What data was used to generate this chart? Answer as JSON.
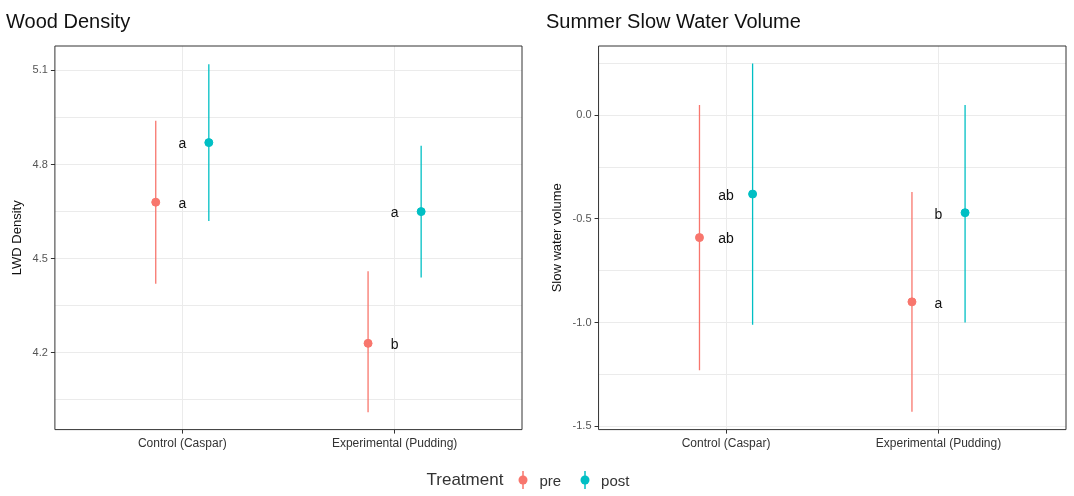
{
  "chart_data": [
    {
      "type": "scatter",
      "title": "Wood Density",
      "ylabel": "LWD Density",
      "categories": [
        "Control (Caspar)",
        "Experimental (Pudding)"
      ],
      "series": [
        {
          "name": "pre",
          "color": "#f8766d",
          "values": [
            4.68,
            4.23
          ],
          "errors": [
            [
              4.42,
              4.94
            ],
            [
              4.01,
              4.46
            ]
          ]
        },
        {
          "name": "post",
          "color": "#00bfc4",
          "values": [
            4.87,
            4.65
          ],
          "errors": [
            [
              4.62,
              5.12
            ],
            [
              4.44,
              4.86
            ]
          ]
        }
      ],
      "ylim": [
        3.955,
        5.178
      ],
      "yticks": [
        {
          "value": 4.05,
          "label": null
        },
        4.2,
        {
          "value": 4.35,
          "label": null
        },
        4.5,
        {
          "value": 4.65,
          "label": null
        },
        4.8,
        {
          "value": 4.95,
          "label": null
        },
        5.1
      ],
      "annotations": [
        "a",
        "b",
        "a",
        "a"
      ],
      "grid": true,
      "marker": "circle",
      "legend": "bottom",
      "legend_title": "Treatment"
    },
    {
      "type": "scatter",
      "title": "Summer Slow Water Volume",
      "ylabel": "Slow water volume",
      "categories": [
        "Control (Caspar)",
        "Experimental (Pudding)"
      ],
      "series": [
        {
          "name": "pre",
          "color": "#f8766d",
          "values": [
            -0.59,
            -0.9
          ],
          "errors": [
            [
              -1.23,
              0.05
            ],
            [
              -1.43,
              -0.37
            ]
          ]
        },
        {
          "name": "post",
          "color": "#00bfc4",
          "values": [
            -0.38,
            -0.47
          ],
          "errors": [
            [
              -1.01,
              0.25
            ],
            [
              -1.0,
              0.05
            ]
          ]
        }
      ],
      "ylim": [
        -1.516,
        0.334
      ],
      "yticks": [
        -1.5,
        {
          "value": -1.25,
          "label": null
        },
        {
          "value": -1,
          "label": "-1.0"
        },
        {
          "value": -0.75,
          "label": null
        },
        -0.5,
        {
          "value": -0.25,
          "label": null
        },
        {
          "value": 0,
          "label": "0.0"
        },
        {
          "value": 0.25,
          "label": null
        }
      ],
      "annotations": [
        "ab",
        "a",
        "ab",
        "b"
      ],
      "grid": true,
      "marker": "circle",
      "legend": "bottom"
    }
  ]
}
